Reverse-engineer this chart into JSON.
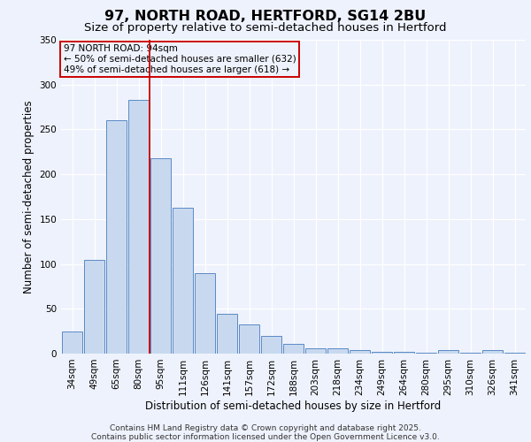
{
  "title": "97, NORTH ROAD, HERTFORD, SG14 2BU",
  "subtitle": "Size of property relative to semi-detached houses in Hertford",
  "xlabel": "Distribution of semi-detached houses by size in Hertford",
  "ylabel": "Number of semi-detached properties",
  "categories": [
    "34sqm",
    "49sqm",
    "65sqm",
    "80sqm",
    "95sqm",
    "111sqm",
    "126sqm",
    "141sqm",
    "157sqm",
    "172sqm",
    "188sqm",
    "203sqm",
    "218sqm",
    "234sqm",
    "249sqm",
    "264sqm",
    "280sqm",
    "295sqm",
    "310sqm",
    "326sqm",
    "341sqm"
  ],
  "values": [
    25,
    105,
    260,
    283,
    218,
    163,
    90,
    44,
    33,
    20,
    11,
    6,
    6,
    4,
    2,
    2,
    1,
    4,
    1,
    4,
    1
  ],
  "bar_color": "#c8d9ef",
  "bar_edge_color": "#5b8ac5",
  "vline_color": "#cc0000",
  "vline_pos": 3.5,
  "annotation_line1": "97 NORTH ROAD: 94sqm",
  "annotation_line2": "← 50% of semi-detached houses are smaller (632)",
  "annotation_line3": "49% of semi-detached houses are larger (618) →",
  "box_edge_color": "#cc0000",
  "ylim": [
    0,
    350
  ],
  "yticks": [
    0,
    50,
    100,
    150,
    200,
    250,
    300,
    350
  ],
  "footer_line1": "Contains HM Land Registry data © Crown copyright and database right 2025.",
  "footer_line2": "Contains public sector information licensed under the Open Government Licence v3.0.",
  "title_fontsize": 11.5,
  "subtitle_fontsize": 9.5,
  "axis_label_fontsize": 8.5,
  "tick_fontsize": 7.5,
  "annotation_fontsize": 7.5,
  "footer_fontsize": 6.5,
  "background_color": "#eef2fc"
}
